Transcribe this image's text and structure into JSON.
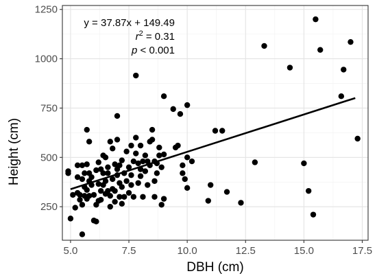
{
  "chart_data": {
    "type": "scatter",
    "xlabel": "DBH (cm)",
    "ylabel": "Height (cm)",
    "xlim": [
      4.65,
      17.75
    ],
    "ylim": [
      80,
      1270
    ],
    "xticks": [
      5.0,
      7.5,
      10.0,
      12.5,
      15.0,
      17.5
    ],
    "xtick_labels": [
      "5.0",
      "7.5",
      "10.0",
      "12.5",
      "15.0",
      "17.5"
    ],
    "yticks": [
      250,
      500,
      750,
      1000,
      1250
    ],
    "ytick_labels": [
      "250",
      "500",
      "750",
      "1000",
      "1250"
    ],
    "grid": true,
    "legend": "none",
    "colors": {
      "points": "#000000",
      "line": "#000000",
      "grid": "#e3e3e3",
      "panel_border": "#333333"
    },
    "annotations": {
      "equation": "y = 37.87x + 149.49",
      "r2_prefix": "r",
      "r2_superscript": "2",
      "r2_suffix": " = 0.31",
      "p_prefix": "p",
      "p_suffix": " < 0.001"
    },
    "regression": {
      "slope": 37.87,
      "intercept": 149.49,
      "x_range": [
        5.0,
        17.2
      ]
    },
    "points": [
      [
        4.9,
        430
      ],
      [
        4.9,
        420
      ],
      [
        5.0,
        190
      ],
      [
        5.1,
        310
      ],
      [
        5.2,
        245
      ],
      [
        5.3,
        320
      ],
      [
        5.3,
        400
      ],
      [
        5.3,
        460
      ],
      [
        5.4,
        310
      ],
      [
        5.4,
        285
      ],
      [
        5.5,
        110
      ],
      [
        5.5,
        260
      ],
      [
        5.5,
        460
      ],
      [
        5.5,
        390
      ],
      [
        5.6,
        350
      ],
      [
        5.6,
        305
      ],
      [
        5.6,
        420
      ],
      [
        5.7,
        465
      ],
      [
        5.7,
        640
      ],
      [
        5.7,
        335
      ],
      [
        5.7,
        290
      ],
      [
        5.8,
        580
      ],
      [
        5.8,
        420
      ],
      [
        5.8,
        305
      ],
      [
        5.8,
        380
      ],
      [
        5.9,
        400
      ],
      [
        5.9,
        360
      ],
      [
        6.0,
        310
      ],
      [
        6.0,
        180
      ],
      [
        6.1,
        175
      ],
      [
        6.1,
        260
      ],
      [
        6.1,
        435
      ],
      [
        6.2,
        475
      ],
      [
        6.2,
        365
      ],
      [
        6.2,
        280
      ],
      [
        6.3,
        440
      ],
      [
        6.3,
        330
      ],
      [
        6.3,
        285
      ],
      [
        6.4,
        510
      ],
      [
        6.4,
        420
      ],
      [
        6.4,
        360
      ],
      [
        6.5,
        500
      ],
      [
        6.5,
        380
      ],
      [
        6.5,
        315
      ],
      [
        6.6,
        450
      ],
      [
        6.6,
        330
      ],
      [
        6.6,
        420
      ],
      [
        6.7,
        305
      ],
      [
        6.7,
        580
      ],
      [
        6.7,
        250
      ],
      [
        6.8,
        545
      ],
      [
        6.8,
        390
      ],
      [
        6.8,
        340
      ],
      [
        6.9,
        465
      ],
      [
        6.9,
        330
      ],
      [
        6.9,
        275
      ],
      [
        7.0,
        710
      ],
      [
        7.0,
        440
      ],
      [
        7.0,
        410
      ],
      [
        7.0,
        590
      ],
      [
        7.1,
        370
      ],
      [
        7.1,
        300
      ],
      [
        7.1,
        460
      ],
      [
        7.2,
        485
      ],
      [
        7.2,
        350
      ],
      [
        7.2,
        265
      ],
      [
        7.3,
        420
      ],
      [
        7.3,
        300
      ],
      [
        7.4,
        530
      ],
      [
        7.4,
        380
      ],
      [
        7.5,
        450
      ],
      [
        7.5,
        320
      ],
      [
        7.6,
        560
      ],
      [
        7.6,
        410
      ],
      [
        7.6,
        360
      ],
      [
        7.7,
        480
      ],
      [
        7.7,
        300
      ],
      [
        7.8,
        915
      ],
      [
        7.8,
        600
      ],
      [
        7.8,
        520
      ],
      [
        7.9,
        470
      ],
      [
        7.9,
        370
      ],
      [
        8.0,
        560
      ],
      [
        8.0,
        440
      ],
      [
        8.0,
        405
      ],
      [
        8.1,
        480
      ],
      [
        8.1,
        300
      ],
      [
        8.2,
        510
      ],
      [
        8.2,
        430
      ],
      [
        8.3,
        480
      ],
      [
        8.3,
        360
      ],
      [
        8.4,
        580
      ],
      [
        8.4,
        460
      ],
      [
        8.5,
        640
      ],
      [
        8.5,
        590
      ],
      [
        8.6,
        480
      ],
      [
        8.6,
        380
      ],
      [
        8.6,
        300
      ],
      [
        8.7,
        470
      ],
      [
        8.7,
        420
      ],
      [
        8.8,
        550
      ],
      [
        8.8,
        510
      ],
      [
        8.9,
        450
      ],
      [
        8.9,
        260
      ],
      [
        9.0,
        810
      ],
      [
        9.0,
        515
      ],
      [
        9.0,
        290
      ],
      [
        9.4,
        745
      ],
      [
        9.5,
        550
      ],
      [
        9.6,
        560
      ],
      [
        9.7,
        720
      ],
      [
        9.8,
        460
      ],
      [
        9.8,
        420
      ],
      [
        9.9,
        390
      ],
      [
        10.0,
        765
      ],
      [
        10.0,
        500
      ],
      [
        10.0,
        345
      ],
      [
        10.2,
        480
      ],
      [
        10.9,
        280
      ],
      [
        11.0,
        360
      ],
      [
        11.2,
        635
      ],
      [
        11.5,
        635
      ],
      [
        11.7,
        325
      ],
      [
        12.3,
        270
      ],
      [
        12.9,
        475
      ],
      [
        13.3,
        1065
      ],
      [
        14.4,
        955
      ],
      [
        15.0,
        470
      ],
      [
        15.2,
        330
      ],
      [
        15.4,
        210
      ],
      [
        15.5,
        1200
      ],
      [
        15.7,
        1045
      ],
      [
        16.6,
        810
      ],
      [
        16.7,
        945
      ],
      [
        17.0,
        1085
      ],
      [
        17.3,
        595
      ]
    ]
  }
}
